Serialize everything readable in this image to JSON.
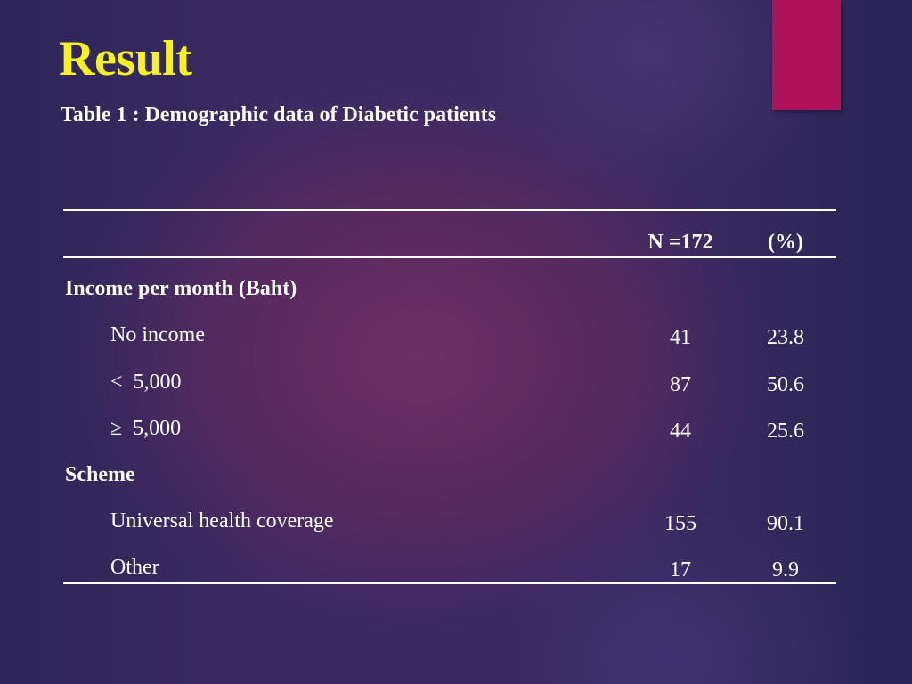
{
  "slide": {
    "title": "Result",
    "subtitle": "Table 1 : Demographic data of Diabetic patients"
  },
  "table": {
    "headers": {
      "n": "N =172",
      "pct": "(%)"
    },
    "sections": [
      {
        "label": "Income per month (Baht)",
        "rows": [
          {
            "label": "No income",
            "n": "41",
            "pct": "23.8"
          },
          {
            "label": "<  5,000",
            "n": "87",
            "pct": "50.6"
          },
          {
            "label": "≥  5,000",
            "n": "44",
            "pct": "25.6"
          }
        ]
      },
      {
        "label": "Scheme",
        "rows": [
          {
            "label": "Universal health coverage",
            "n": "155",
            "pct": "90.1"
          },
          {
            "label": "Other",
            "n": "17",
            "pct": "9.9"
          }
        ]
      }
    ]
  },
  "colors": {
    "title": "#f5f21e",
    "accent": "#b0125a",
    "text": "#ffffff"
  }
}
